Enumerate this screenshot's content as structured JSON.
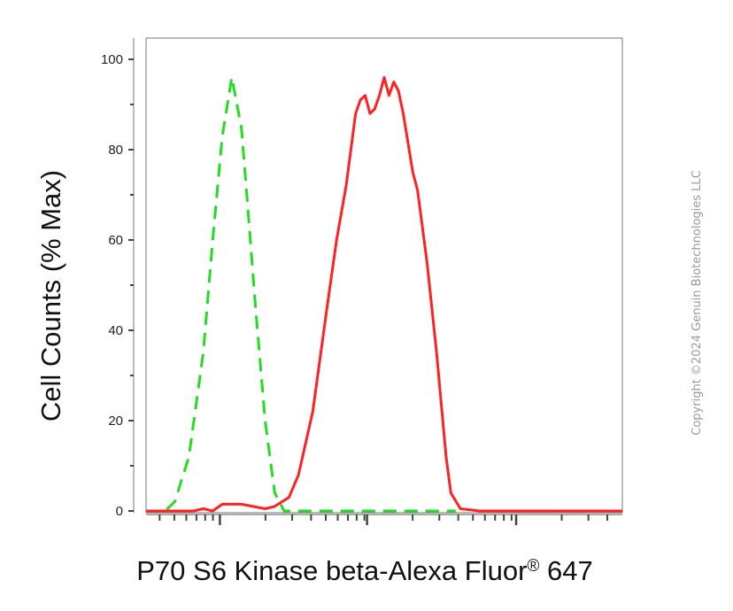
{
  "copyright": "Copyright ©2024 Genuin Biotechnologies LLC",
  "chart_data": {
    "type": "line",
    "ylabel": "Cell Counts (% Max)",
    "xlabel_main": "P70 S6 Kinase beta-Alexa Fluor",
    "xlabel_sup": "®",
    "xlabel_end": " 647",
    "y_ticks": [
      "0",
      "20",
      "40",
      "60",
      "80",
      "100"
    ],
    "ylim": [
      0,
      100
    ],
    "xlim": [
      0,
      1
    ],
    "x_scale": "log",
    "grid": false,
    "series": [
      {
        "color": "#22dd22",
        "dash": "dashed",
        "points": [
          [
            0.0,
            0
          ],
          [
            0.04,
            0
          ],
          [
            0.06,
            2
          ],
          [
            0.09,
            12
          ],
          [
            0.12,
            35
          ],
          [
            0.14,
            60
          ],
          [
            0.16,
            83
          ],
          [
            0.18,
            96
          ],
          [
            0.2,
            85
          ],
          [
            0.21,
            72
          ],
          [
            0.23,
            45
          ],
          [
            0.25,
            20
          ],
          [
            0.27,
            4
          ],
          [
            0.29,
            0
          ],
          [
            0.35,
            0
          ],
          [
            0.5,
            0
          ],
          [
            0.65,
            0
          ]
        ]
      },
      {
        "color": "#ff2222",
        "dash": "solid",
        "points": [
          [
            0.0,
            0
          ],
          [
            0.1,
            0
          ],
          [
            0.12,
            0.5
          ],
          [
            0.14,
            0
          ],
          [
            0.16,
            1.5
          ],
          [
            0.2,
            1.5
          ],
          [
            0.25,
            0.5
          ],
          [
            0.27,
            1
          ],
          [
            0.3,
            3
          ],
          [
            0.32,
            8
          ],
          [
            0.35,
            22
          ],
          [
            0.38,
            45
          ],
          [
            0.4,
            60
          ],
          [
            0.42,
            72
          ],
          [
            0.44,
            88
          ],
          [
            0.45,
            91
          ],
          [
            0.46,
            92
          ],
          [
            0.47,
            88
          ],
          [
            0.48,
            89
          ],
          [
            0.49,
            92
          ],
          [
            0.5,
            96
          ],
          [
            0.51,
            92
          ],
          [
            0.52,
            95
          ],
          [
            0.53,
            93
          ],
          [
            0.54,
            88
          ],
          [
            0.56,
            75
          ],
          [
            0.57,
            71
          ],
          [
            0.59,
            55
          ],
          [
            0.61,
            35
          ],
          [
            0.63,
            12
          ],
          [
            0.64,
            4
          ],
          [
            0.66,
            0.5
          ],
          [
            0.7,
            0
          ],
          [
            1.0,
            0
          ]
        ]
      }
    ]
  }
}
